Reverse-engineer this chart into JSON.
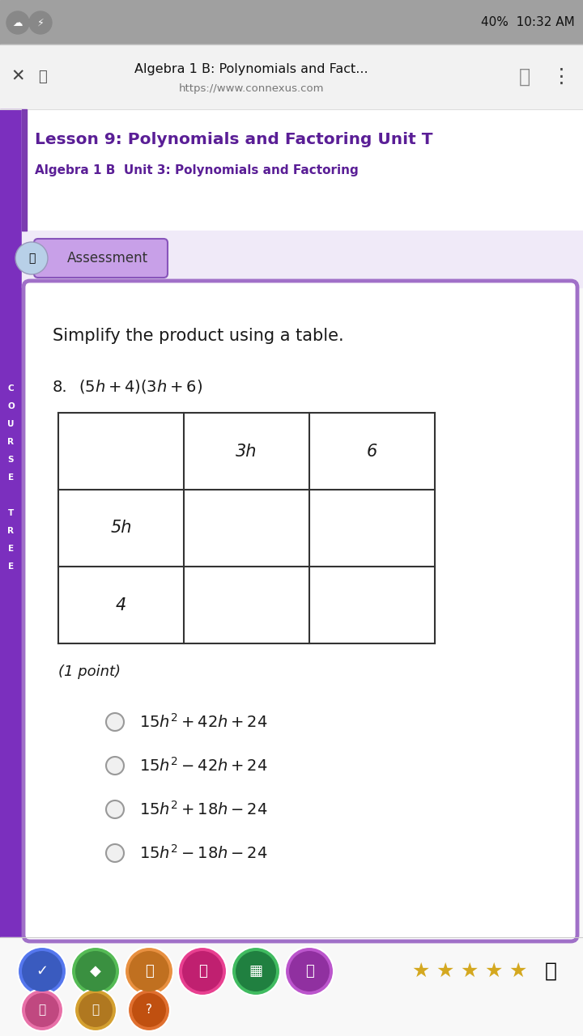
{
  "browser_title": "Algebra 1 B: Polynomials and Fact...",
  "browser_url": "https://www.connexus.com",
  "lesson_title": "Lesson 9: Polynomials and Factoring Unit T",
  "lesson_subtitle": "Algebra 1 B  Unit 3: Polynomials and Factoring",
  "assessment_label": "Assessment",
  "question_text": "Simplify the product using a table.",
  "question_number": "8.",
  "table_col_headers": [
    "3h",
    "6"
  ],
  "table_row_headers": [
    "5h",
    "4"
  ],
  "point_label": "(1 point)",
  "choices_math": [
    "$15h^2 + 42h + 24$",
    "$15h^2 - 42h + 24$",
    "$15h^2 + 18h - 24$",
    "$15h^2 - 18h - 24$"
  ],
  "bg_color": "#f8f8f8",
  "status_bar_bg": "#a0a0a0",
  "browser_bar_bg": "#f2f2f2",
  "purple_accent": "#7b3cb0",
  "purple_title": "#5a1e96",
  "purple_border": "#a070c8",
  "purple_sidebar": "#7b2fbe",
  "card_bg": "#ffffff",
  "text_color": "#1a1a1a",
  "radio_color": "#aaaaaa",
  "table_border_color": "#333333",
  "star_color": "#d4a820",
  "star_empty_color": "#d4a820"
}
